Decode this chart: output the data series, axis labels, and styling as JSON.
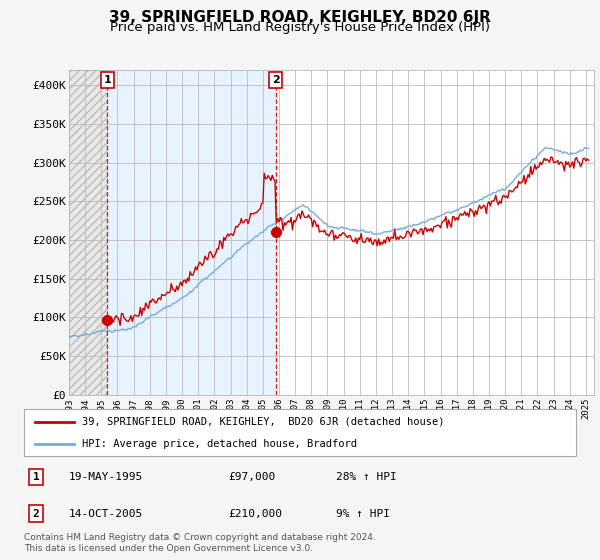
{
  "title": "39, SPRINGFIELD ROAD, KEIGHLEY, BD20 6JR",
  "subtitle": "Price paid vs. HM Land Registry's House Price Index (HPI)",
  "ylim": [
    0,
    420000
  ],
  "yticks": [
    0,
    50000,
    100000,
    150000,
    200000,
    250000,
    300000,
    350000,
    400000
  ],
  "ytick_labels": [
    "£0",
    "£50K",
    "£100K",
    "£150K",
    "£200K",
    "£250K",
    "£300K",
    "£350K",
    "£400K"
  ],
  "line1_color": "#cc0000",
  "line2_color": "#7aaadd",
  "background_color": "#f5f5f5",
  "hatch_bg": "#e0e0e0",
  "blue_fill": "#ddeeff",
  "sale1_date": 1995.38,
  "sale1_price": 97000,
  "sale2_date": 2005.79,
  "sale2_price": 210000,
  "legend_label1": "39, SPRINGFIELD ROAD, KEIGHLEY,  BD20 6JR (detached house)",
  "legend_label2": "HPI: Average price, detached house, Bradford",
  "table_row1": [
    "1",
    "19-MAY-1995",
    "£97,000",
    "28% ↑ HPI"
  ],
  "table_row2": [
    "2",
    "14-OCT-2005",
    "£210,000",
    "9% ↑ HPI"
  ],
  "footer": "Contains HM Land Registry data © Crown copyright and database right 2024.\nThis data is licensed under the Open Government Licence v3.0.",
  "title_fontsize": 11,
  "subtitle_fontsize": 9.5
}
